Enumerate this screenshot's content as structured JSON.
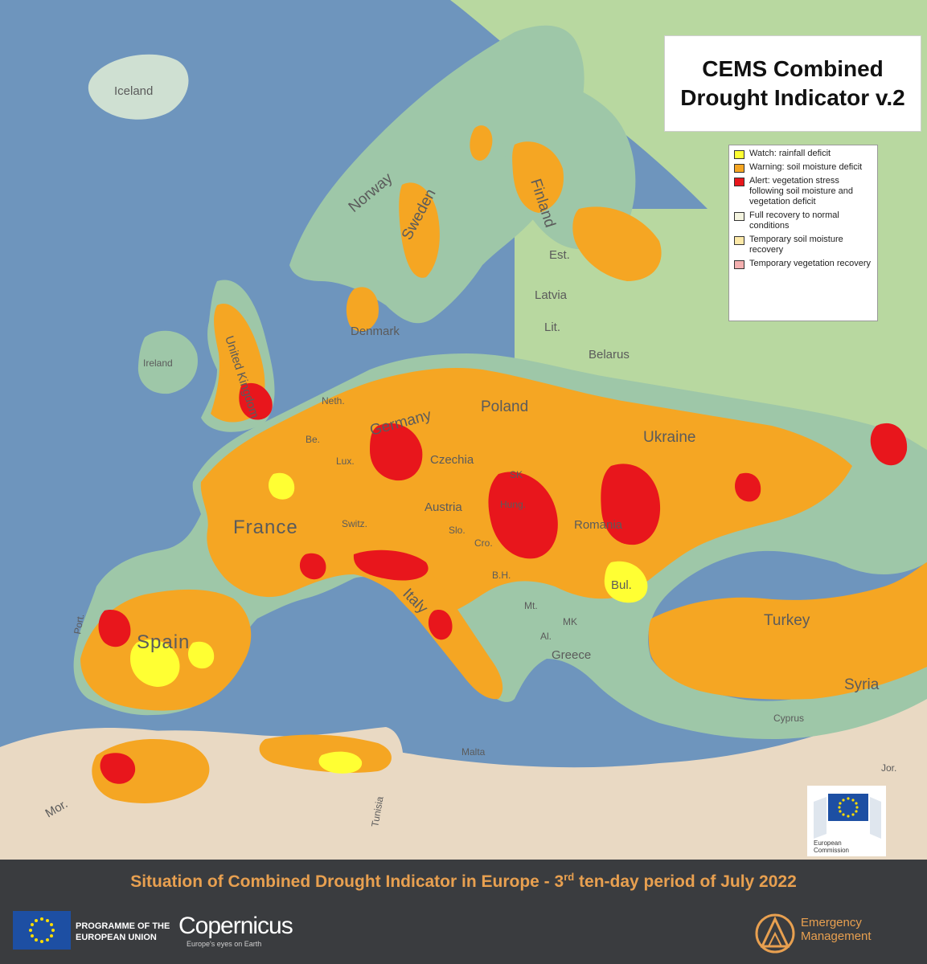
{
  "map_title": {
    "line1": "CEMS Combined",
    "line2": "Drought Indicator v.2"
  },
  "legend": [
    {
      "label": "Watch: rainfall deficit",
      "color": "#ffff33"
    },
    {
      "label": "Warning: soil moisture deficit",
      "color": "#f5a623"
    },
    {
      "label": "Alert: vegetation stress following soil moisture and vegetation deficit",
      "color": "#e8161c"
    },
    {
      "label": "Full recovery to normal conditions",
      "color": "#f4f4df"
    },
    {
      "label": "Temporary soil moisture recovery",
      "color": "#fde9a8"
    },
    {
      "label": "Temporary vegetation recovery",
      "color": "#f4b0b0"
    }
  ],
  "country_labels": {
    "iceland": "Iceland",
    "norway": "Norway",
    "sweden": "Sweden",
    "finland": "Finland",
    "estonia": "Est.",
    "latvia": "Latvia",
    "lithuania": "Lit.",
    "denmark": "Denmark",
    "ireland": "Ireland",
    "uk": "United Kingdom",
    "belarus": "Belarus",
    "poland": "Poland",
    "neth": "Neth.",
    "belgium": "Be.",
    "lux": "Lux.",
    "germany": "Germany",
    "czechia": "Czechia",
    "ukraine": "Ukraine",
    "slovakia": "SK",
    "austria": "Austria",
    "hungary": "Hung.",
    "france": "France",
    "switzerland": "Switz.",
    "slovenia": "Slo.",
    "croatia": "Cro.",
    "romania": "Romania",
    "bosnia": "B.H.",
    "bulgaria": "Bul.",
    "italy": "Italy",
    "montenegro": "Mt.",
    "north_macedonia": "MK",
    "albania": "Al.",
    "greece": "Greece",
    "turkey": "Turkey",
    "spain": "Spain",
    "portugal": "Port.",
    "malta": "Malta",
    "cyprus": "Cyprus",
    "syria": "Syria",
    "tunisia": "Tunisia",
    "morocco": "Mor.",
    "jordan": "Jor."
  },
  "footer": {
    "caption_pre": "Situation of Combined Drought Indicator in Europe - 3",
    "caption_sup": "rd",
    "caption_post": " ten-day period of July 2022",
    "eu_program_line1": "PROGRAMME OF THE",
    "eu_program_line2": "EUROPEAN UNION",
    "copernicus_name": "Copernicus",
    "copernicus_tagline": "Europe's eyes on Earth",
    "em_line1": "Emergency",
    "em_line2": "Management",
    "ec_line1": "European",
    "ec_line2": "Commission"
  },
  "colors": {
    "sea": "#6e95bd",
    "land": "#9ec7a8",
    "land_east": "#b8d8a0",
    "desert": "#e9d9c3",
    "watch": "#ffff33",
    "warning": "#f5a623",
    "alert": "#e8161c",
    "accent": "#e8a050"
  }
}
